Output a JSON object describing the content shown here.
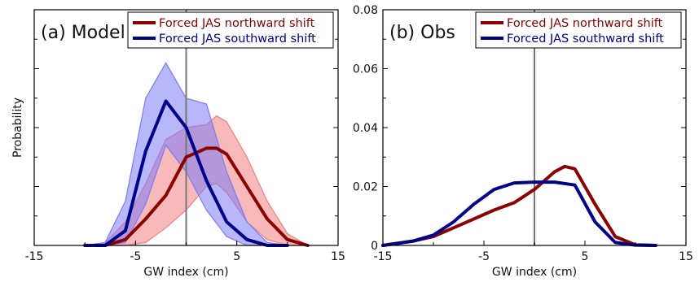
{
  "chart_data": [
    {
      "type": "area",
      "panel_label": "(a) Model",
      "xlabel": "GW index (cm)",
      "ylabel": "Probability",
      "xlim": [
        -15,
        15
      ],
      "ylim": [
        0,
        0.08
      ],
      "xticks": [
        "-15",
        "-5",
        "5",
        "15"
      ],
      "yticks": [],
      "zero_line": 0,
      "legend": {
        "placement": "top-right"
      },
      "series": [
        {
          "name": "Forced JAS northward shift",
          "color": "#8b0000",
          "band_color": "#f08080",
          "x": [
            -10,
            -8,
            -6,
            -4,
            -2,
            0,
            2,
            3,
            4,
            6,
            8,
            10,
            12
          ],
          "mean": [
            0,
            0,
            0.002,
            0.009,
            0.017,
            0.03,
            0.033,
            0.033,
            0.031,
            0.02,
            0.009,
            0.002,
            0
          ],
          "lower": [
            0,
            0,
            0,
            0.001,
            0.006,
            0.012,
            0.02,
            0.021,
            0.018,
            0.008,
            0.002,
            0,
            0
          ],
          "upper": [
            0,
            0.001,
            0.008,
            0.021,
            0.036,
            0.04,
            0.041,
            0.044,
            0.042,
            0.03,
            0.015,
            0.004,
            0
          ]
        },
        {
          "name": "Forced JAS southward shift",
          "color": "#00008b",
          "band_color": "#7b7bf5",
          "x": [
            -10,
            -8,
            -6,
            -4,
            -2,
            0,
            2,
            4,
            6,
            8,
            10
          ],
          "mean": [
            0,
            0,
            0.005,
            0.032,
            0.049,
            0.04,
            0.022,
            0.008,
            0.002,
            0,
            0
          ],
          "lower": [
            0,
            0,
            0.001,
            0.014,
            0.034,
            0.025,
            0.012,
            0.003,
            0,
            0,
            0
          ],
          "upper": [
            0,
            0.001,
            0.015,
            0.05,
            0.062,
            0.05,
            0.048,
            0.025,
            0.008,
            0.001,
            0
          ]
        }
      ]
    },
    {
      "type": "line",
      "panel_label": "(b) Obs",
      "xlabel": "GW index (cm)",
      "ylabel": "",
      "xlim": [
        -15,
        15
      ],
      "ylim": [
        0,
        0.08
      ],
      "xticks": [
        "-15",
        "-5",
        "5",
        "15"
      ],
      "yticks": [
        "0",
        "0.02",
        "0.04",
        "0.06",
        "0.08"
      ],
      "zero_line": 0,
      "legend": {
        "placement": "top-right"
      },
      "series": [
        {
          "name": "Forced JAS northward shift",
          "color": "#8b0000",
          "x": [
            -15,
            -12,
            -10,
            -8,
            -6,
            -4,
            -2,
            0,
            2,
            3,
            4,
            6,
            8,
            10,
            12
          ],
          "y": [
            0,
            0.0015,
            0.003,
            0.006,
            0.009,
            0.012,
            0.0145,
            0.019,
            0.025,
            0.0268,
            0.026,
            0.014,
            0.003,
            0.0002,
            0
          ]
        },
        {
          "name": "Forced JAS southward shift",
          "color": "#00008b",
          "x": [
            -15,
            -12,
            -10,
            -8,
            -6,
            -4,
            -2,
            0,
            2,
            4,
            6,
            8,
            10,
            12
          ],
          "y": [
            0,
            0.0015,
            0.0035,
            0.008,
            0.014,
            0.019,
            0.0212,
            0.0215,
            0.0215,
            0.0205,
            0.008,
            0.001,
            0.0001,
            0
          ]
        }
      ]
    }
  ]
}
